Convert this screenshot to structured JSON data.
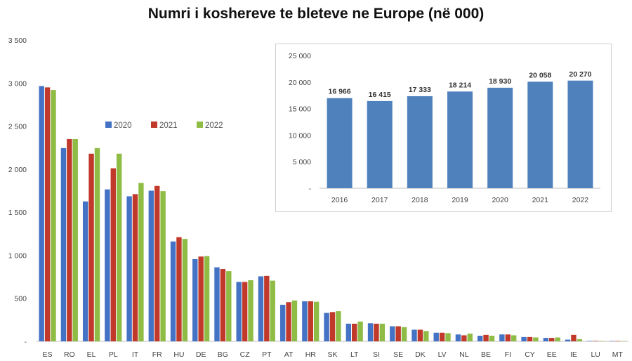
{
  "chart_data": [
    {
      "type": "bar",
      "title": "Numri i koshereve te bleteve ne Europe (në 000)",
      "categories": [
        "ES",
        "RO",
        "EL",
        "PL",
        "IT",
        "FR",
        "HU",
        "DE",
        "BG",
        "CZ",
        "PT",
        "AT",
        "HR",
        "SK",
        "LT",
        "SI",
        "SE",
        "DK",
        "LV",
        "NL",
        "BE",
        "FI",
        "CY",
        "EE",
        "IE",
        "LU",
        "MT"
      ],
      "series": [
        {
          "name": "2020",
          "color": "#4472c4",
          "values": [
            2965,
            2245,
            1625,
            1765,
            1685,
            1750,
            1160,
            955,
            860,
            690,
            755,
            425,
            465,
            330,
            205,
            210,
            175,
            135,
            100,
            80,
            65,
            80,
            50,
            40,
            20,
            5,
            3
          ]
        },
        {
          "name": "2021",
          "color": "#c0392b",
          "values": [
            2950,
            2350,
            2180,
            2010,
            1710,
            1805,
            1210,
            985,
            840,
            690,
            760,
            455,
            465,
            340,
            205,
            205,
            175,
            135,
            100,
            70,
            75,
            80,
            50,
            40,
            75,
            5,
            3
          ]
        },
        {
          "name": "2022",
          "color": "#8fbc45",
          "values": [
            2920,
            2350,
            2245,
            2180,
            1840,
            1745,
            1190,
            990,
            815,
            710,
            705,
            475,
            460,
            350,
            230,
            205,
            165,
            120,
            95,
            90,
            65,
            70,
            45,
            45,
            25,
            5,
            3
          ]
        }
      ],
      "y_ticks": [
        "-",
        "500",
        "1 000",
        "1 500",
        "2 000",
        "2 500",
        "3 000",
        "3 500"
      ],
      "ylim": [
        0,
        3500
      ],
      "grid": false,
      "legend": "left, inside plot"
    },
    {
      "type": "bar",
      "categories": [
        "2016",
        "2017",
        "2018",
        "2019",
        "2020",
        "2021",
        "2022"
      ],
      "values": [
        16966,
        16415,
        17333,
        18214,
        18930,
        20058,
        20270
      ],
      "data_labels": [
        "16 966",
        "16 415",
        "17 333",
        "18 214",
        "18 930",
        "20 058",
        "20 270"
      ],
      "y_ticks": [
        "-",
        "5 000",
        "10 000",
        "15 000",
        "20 000",
        "25 000"
      ],
      "ylim": [
        0,
        25000
      ],
      "color": "#4f81bd",
      "grid": false
    }
  ]
}
